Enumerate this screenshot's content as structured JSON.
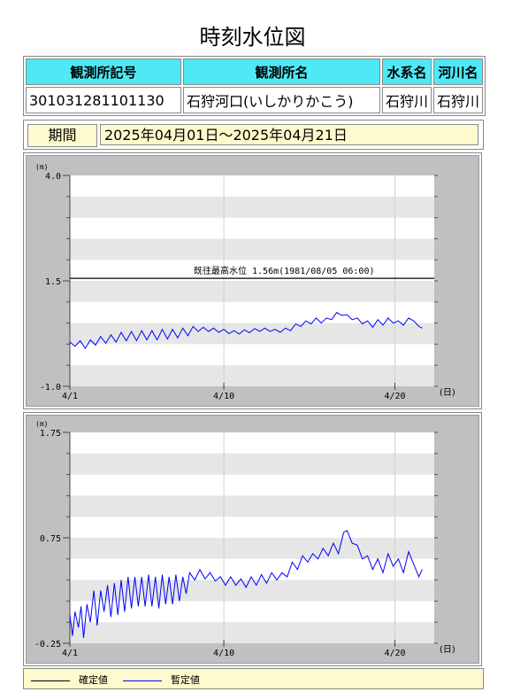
{
  "page": {
    "title": "時刻水位図"
  },
  "station": {
    "headers": [
      "観測所記号",
      "観測所名",
      "水系名",
      "河川名"
    ],
    "values": [
      "301031281101130",
      "石狩河口(いしかりかこう)",
      "石狩川",
      "石狩川"
    ]
  },
  "period": {
    "label": "期間",
    "value": "2025年04月01日～2025年04月21日"
  },
  "legend": {
    "confirmed": "確定値",
    "provisional": "暫定値",
    "confirmed_color": "#000000",
    "provisional_color": "#0000ff"
  },
  "chart_data": [
    {
      "type": "line",
      "unit": "(m)",
      "x_unit": "(日)",
      "x_ticks": [
        {
          "day": 1,
          "label": "4/1"
        },
        {
          "day": 10,
          "label": "4/10"
        },
        {
          "day": 20,
          "label": "4/20"
        }
      ],
      "xlim": [
        1,
        22.3
      ],
      "ylim": [
        -1.0,
        4.0
      ],
      "y_ticks": [
        {
          "v": -1.0,
          "label": "-1.0"
        },
        {
          "v": 1.5,
          "label": "1.5"
        },
        {
          "v": 4.0,
          "label": "4.0"
        }
      ],
      "reference_line": {
        "value": 1.56,
        "label": "既往最高水位 1.56m(1981/08/05 06:00)"
      },
      "grid": true,
      "series": [
        {
          "name": "暫定値",
          "color": "#0000ff",
          "points": [
            [
              1.0,
              0.05
            ],
            [
              1.3,
              -0.05
            ],
            [
              1.6,
              0.08
            ],
            [
              1.9,
              -0.1
            ],
            [
              2.2,
              0.1
            ],
            [
              2.5,
              -0.02
            ],
            [
              2.8,
              0.18
            ],
            [
              3.1,
              0.02
            ],
            [
              3.4,
              0.22
            ],
            [
              3.7,
              0.05
            ],
            [
              4.0,
              0.28
            ],
            [
              4.3,
              0.08
            ],
            [
              4.6,
              0.3
            ],
            [
              4.9,
              0.08
            ],
            [
              5.2,
              0.32
            ],
            [
              5.5,
              0.1
            ],
            [
              5.8,
              0.32
            ],
            [
              6.1,
              0.1
            ],
            [
              6.4,
              0.35
            ],
            [
              6.7,
              0.12
            ],
            [
              7.0,
              0.35
            ],
            [
              7.3,
              0.15
            ],
            [
              7.6,
              0.38
            ],
            [
              7.9,
              0.2
            ],
            [
              8.2,
              0.42
            ],
            [
              8.5,
              0.3
            ],
            [
              8.8,
              0.4
            ],
            [
              9.1,
              0.3
            ],
            [
              9.4,
              0.38
            ],
            [
              9.7,
              0.28
            ],
            [
              10.0,
              0.35
            ],
            [
              10.3,
              0.25
            ],
            [
              10.6,
              0.32
            ],
            [
              10.9,
              0.24
            ],
            [
              11.2,
              0.34
            ],
            [
              11.5,
              0.27
            ],
            [
              11.8,
              0.37
            ],
            [
              12.1,
              0.3
            ],
            [
              12.4,
              0.38
            ],
            [
              12.7,
              0.3
            ],
            [
              13.0,
              0.35
            ],
            [
              13.3,
              0.28
            ],
            [
              13.6,
              0.38
            ],
            [
              13.9,
              0.32
            ],
            [
              14.2,
              0.48
            ],
            [
              14.5,
              0.42
            ],
            [
              14.8,
              0.55
            ],
            [
              15.1,
              0.48
            ],
            [
              15.4,
              0.62
            ],
            [
              15.7,
              0.5
            ],
            [
              16.0,
              0.62
            ],
            [
              16.3,
              0.58
            ],
            [
              16.6,
              0.75
            ],
            [
              16.9,
              0.68
            ],
            [
              17.2,
              0.7
            ],
            [
              17.5,
              0.58
            ],
            [
              17.8,
              0.62
            ],
            [
              18.1,
              0.48
            ],
            [
              18.4,
              0.55
            ],
            [
              18.7,
              0.4
            ],
            [
              19.0,
              0.58
            ],
            [
              19.3,
              0.45
            ],
            [
              19.6,
              0.62
            ],
            [
              19.9,
              0.5
            ],
            [
              20.2,
              0.55
            ],
            [
              20.5,
              0.45
            ],
            [
              20.8,
              0.62
            ],
            [
              21.1,
              0.55
            ],
            [
              21.4,
              0.42
            ],
            [
              21.6,
              0.38
            ]
          ]
        }
      ]
    },
    {
      "type": "line",
      "unit": "(m)",
      "x_unit": "(日)",
      "x_ticks": [
        {
          "day": 1,
          "label": "4/1"
        },
        {
          "day": 10,
          "label": "4/10"
        },
        {
          "day": 20,
          "label": "4/20"
        }
      ],
      "xlim": [
        1,
        22.3
      ],
      "ylim": [
        -0.25,
        1.75
      ],
      "y_ticks": [
        {
          "v": -0.25,
          "label": "-0.25"
        },
        {
          "v": 0.75,
          "label": "0.75"
        },
        {
          "v": 1.75,
          "label": "1.75"
        }
      ],
      "grid": true,
      "series": [
        {
          "name": "暫定値",
          "color": "#0000ff",
          "points": [
            [
              1.0,
              0.02
            ],
            [
              1.15,
              -0.18
            ],
            [
              1.3,
              0.05
            ],
            [
              1.5,
              -0.1
            ],
            [
              1.65,
              0.1
            ],
            [
              1.8,
              -0.2
            ],
            [
              2.0,
              0.12
            ],
            [
              2.2,
              -0.05
            ],
            [
              2.4,
              0.25
            ],
            [
              2.6,
              -0.08
            ],
            [
              2.8,
              0.25
            ],
            [
              3.0,
              0.05
            ],
            [
              3.2,
              0.3
            ],
            [
              3.4,
              0.0
            ],
            [
              3.6,
              0.32
            ],
            [
              3.8,
              0.02
            ],
            [
              4.0,
              0.35
            ],
            [
              4.2,
              0.05
            ],
            [
              4.4,
              0.38
            ],
            [
              4.6,
              0.08
            ],
            [
              4.8,
              0.38
            ],
            [
              5.0,
              0.1
            ],
            [
              5.2,
              0.38
            ],
            [
              5.4,
              0.1
            ],
            [
              5.6,
              0.4
            ],
            [
              5.8,
              0.1
            ],
            [
              6.0,
              0.38
            ],
            [
              6.2,
              0.08
            ],
            [
              6.4,
              0.4
            ],
            [
              6.6,
              0.12
            ],
            [
              6.8,
              0.38
            ],
            [
              7.0,
              0.12
            ],
            [
              7.2,
              0.4
            ],
            [
              7.4,
              0.15
            ],
            [
              7.6,
              0.38
            ],
            [
              7.8,
              0.22
            ],
            [
              8.0,
              0.42
            ],
            [
              8.3,
              0.35
            ],
            [
              8.6,
              0.45
            ],
            [
              8.9,
              0.36
            ],
            [
              9.2,
              0.42
            ],
            [
              9.5,
              0.34
            ],
            [
              9.8,
              0.38
            ],
            [
              10.1,
              0.3
            ],
            [
              10.4,
              0.38
            ],
            [
              10.7,
              0.3
            ],
            [
              11.0,
              0.36
            ],
            [
              11.3,
              0.28
            ],
            [
              11.6,
              0.38
            ],
            [
              11.9,
              0.3
            ],
            [
              12.2,
              0.4
            ],
            [
              12.5,
              0.32
            ],
            [
              12.8,
              0.42
            ],
            [
              13.1,
              0.35
            ],
            [
              13.4,
              0.42
            ],
            [
              13.7,
              0.38
            ],
            [
              14.0,
              0.52
            ],
            [
              14.3,
              0.45
            ],
            [
              14.6,
              0.58
            ],
            [
              14.9,
              0.52
            ],
            [
              15.2,
              0.6
            ],
            [
              15.5,
              0.55
            ],
            [
              15.8,
              0.65
            ],
            [
              16.1,
              0.58
            ],
            [
              16.4,
              0.7
            ],
            [
              16.7,
              0.6
            ],
            [
              17.0,
              0.8
            ],
            [
              17.2,
              0.82
            ],
            [
              17.5,
              0.7
            ],
            [
              17.8,
              0.68
            ],
            [
              18.1,
              0.55
            ],
            [
              18.4,
              0.58
            ],
            [
              18.7,
              0.45
            ],
            [
              19.0,
              0.55
            ],
            [
              19.3,
              0.42
            ],
            [
              19.6,
              0.6
            ],
            [
              19.9,
              0.48
            ],
            [
              20.2,
              0.55
            ],
            [
              20.5,
              0.42
            ],
            [
              20.8,
              0.62
            ],
            [
              21.1,
              0.5
            ],
            [
              21.4,
              0.38
            ],
            [
              21.6,
              0.45
            ]
          ]
        }
      ]
    }
  ]
}
